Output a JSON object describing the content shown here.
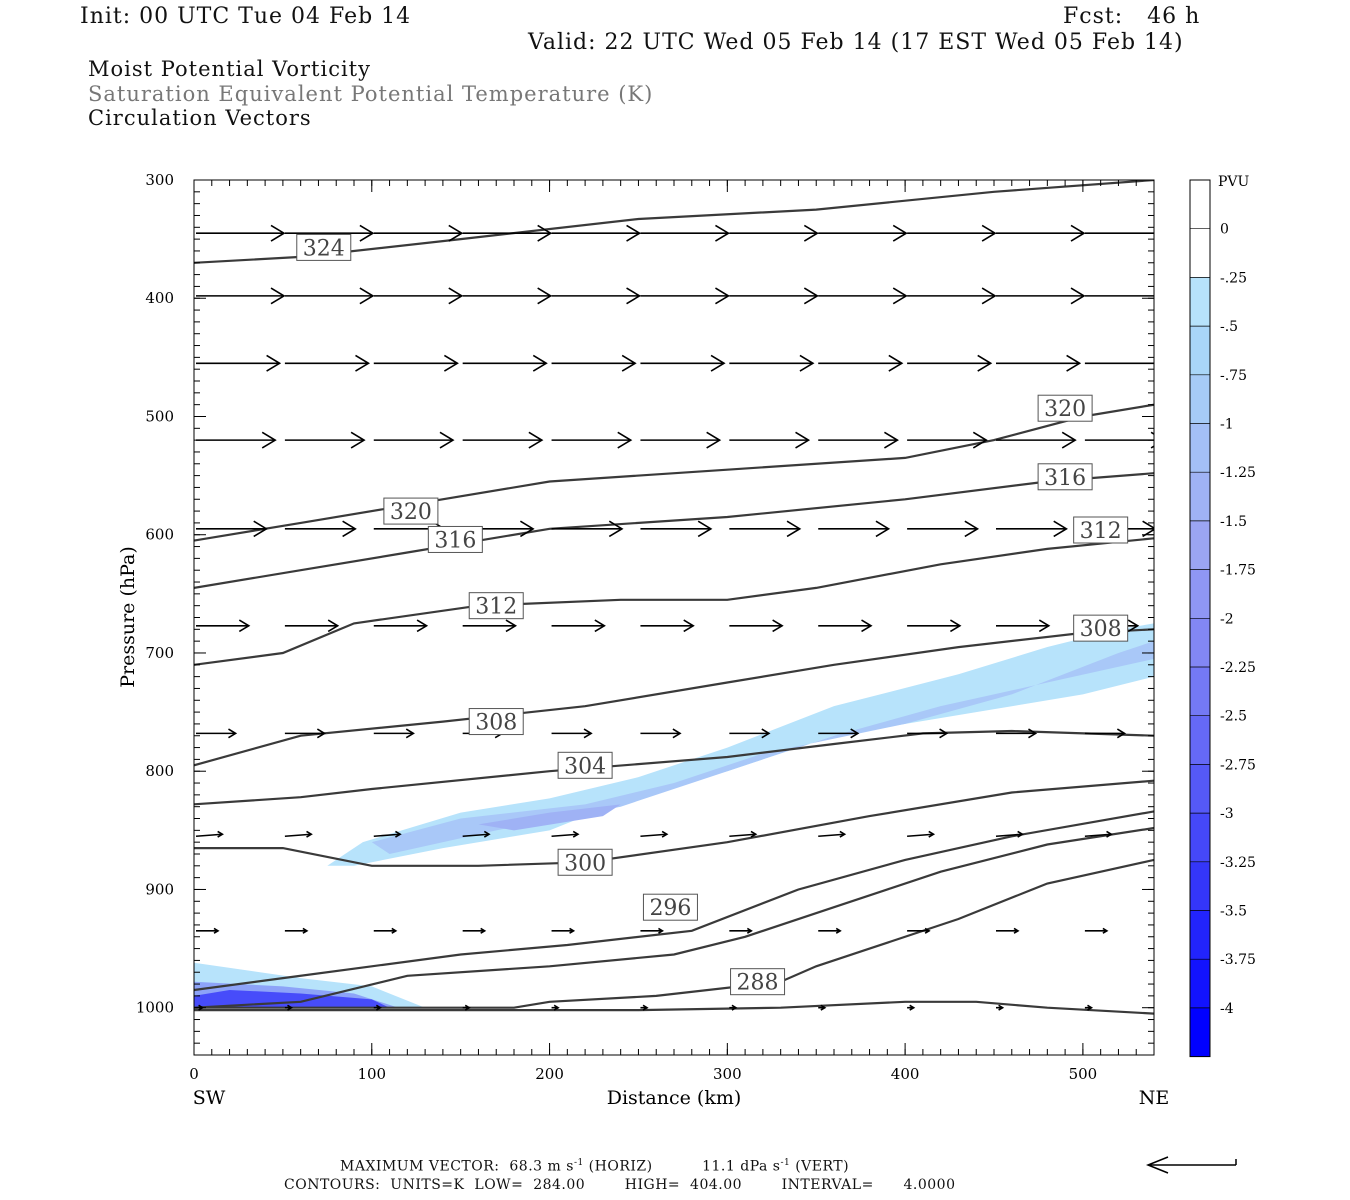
{
  "header": {
    "init": "Init: 00 UTC Tue 04 Feb 14",
    "fcst": "Fcst:   46 h",
    "valid": "Valid: 22 UTC Wed 05 Feb 14 (17 EST Wed 05 Feb 14)",
    "field1": "Moist Potential Vorticity",
    "field2": "Saturation Equivalent Potential Temperature (K)",
    "field3": "Circulation Vectors"
  },
  "footer": {
    "max_vector_label": "MAXIMUM VECTOR:",
    "horiz_value": "68.3 m s",
    "horiz_tag": "(HORIZ)",
    "vert_value": "11.1 dPa s",
    "vert_tag": "(VERT)",
    "exp": "-1",
    "contours": "CONTOURS:  UNITS=K  LOW=  284.00        HIGH=  404.00        INTERVAL=      4.0000"
  },
  "colors": {
    "contour": "#3a3a3a",
    "pv_light": "#b7e3fb",
    "pv_mid": "#a9c8f8",
    "pv_strong": "#0000ff"
  },
  "chart_data": {
    "type": "contour",
    "xlabel": "Distance (km)",
    "ylabel": "Pressure (hPa)",
    "x_left_label": "SW",
    "x_right_label": "NE",
    "xlim": [
      0,
      540
    ],
    "ylim": [
      1040,
      300
    ],
    "xticks": [
      "0",
      "100",
      "200",
      "300",
      "400",
      "500"
    ],
    "yticks": [
      "300",
      "400",
      "500",
      "600",
      "700",
      "800",
      "900",
      "1000"
    ],
    "colorbar": {
      "units": "PVU",
      "labels": [
        "0",
        "-.25",
        "-.5",
        "-.75",
        "-1",
        "-1.25",
        "-1.5",
        "-1.75",
        "-2",
        "-2.25",
        "-2.5",
        "-2.75",
        "-3",
        "-3.25",
        "-3.5",
        "-3.75",
        "-4"
      ],
      "colors": [
        "#ffffff",
        "#ffffff",
        "#b7e3fb",
        "#a9d6f8",
        "#a6cbf7",
        "#a3bff6",
        "#9fb2f5",
        "#9ba5f3",
        "#8f96f4",
        "#8287f4",
        "#7479f5",
        "#6569f6",
        "#5559f7",
        "#4548f8",
        "#3436fa",
        "#2224fc",
        "#1213fd",
        "#0000ff"
      ]
    },
    "contours_K": [
      {
        "level": 324,
        "label": "324",
        "points": [
          [
            0,
            370
          ],
          [
            60,
            365
          ],
          [
            150,
            350
          ],
          [
            250,
            333
          ],
          [
            350,
            325
          ],
          [
            450,
            310
          ],
          [
            540,
            300
          ]
        ]
      },
      {
        "level": 320,
        "label": "320",
        "points": [
          [
            0,
            605
          ],
          [
            60,
            590
          ],
          [
            120,
            575
          ],
          [
            200,
            555
          ],
          [
            300,
            545
          ],
          [
            400,
            535
          ],
          [
            450,
            520
          ],
          [
            500,
            500
          ],
          [
            540,
            490
          ]
        ]
      },
      {
        "level": 316,
        "label": "316",
        "points": [
          [
            0,
            645
          ],
          [
            60,
            630
          ],
          [
            120,
            615
          ],
          [
            200,
            595
          ],
          [
            300,
            585
          ],
          [
            400,
            570
          ],
          [
            480,
            555
          ],
          [
            540,
            548
          ]
        ]
      },
      {
        "level": 312,
        "label": "312",
        "points": [
          [
            0,
            710
          ],
          [
            50,
            700
          ],
          [
            90,
            675
          ],
          [
            160,
            660
          ],
          [
            240,
            655
          ],
          [
            300,
            655
          ],
          [
            350,
            645
          ],
          [
            420,
            625
          ],
          [
            480,
            612
          ],
          [
            540,
            603
          ]
        ]
      },
      {
        "level": 308,
        "label": "308",
        "points": [
          [
            0,
            795
          ],
          [
            60,
            770
          ],
          [
            140,
            758
          ],
          [
            220,
            745
          ],
          [
            300,
            725
          ],
          [
            360,
            710
          ],
          [
            430,
            695
          ],
          [
            500,
            683
          ],
          [
            540,
            680
          ]
        ]
      },
      {
        "level": 304,
        "label": "304",
        "points": [
          [
            0,
            828
          ],
          [
            60,
            822
          ],
          [
            100,
            815
          ],
          [
            200,
            800
          ],
          [
            300,
            788
          ],
          [
            360,
            777
          ],
          [
            410,
            768
          ],
          [
            460,
            766
          ],
          [
            540,
            770
          ]
        ]
      },
      {
        "level": 300,
        "label": "300",
        "points": [
          [
            0,
            865
          ],
          [
            50,
            865
          ],
          [
            100,
            880
          ],
          [
            160,
            880
          ],
          [
            220,
            877
          ],
          [
            300,
            860
          ],
          [
            380,
            838
          ],
          [
            460,
            818
          ],
          [
            540,
            808
          ]
        ]
      },
      {
        "level": 296,
        "label": "296",
        "points": [
          [
            0,
            985
          ],
          [
            50,
            975
          ],
          [
            100,
            965
          ],
          [
            150,
            955
          ],
          [
            210,
            947
          ],
          [
            280,
            935
          ],
          [
            340,
            900
          ],
          [
            400,
            875
          ],
          [
            460,
            855
          ],
          [
            540,
            834
          ]
        ]
      },
      {
        "level": 292,
        "label": "",
        "points": [
          [
            0,
            1000
          ],
          [
            60,
            995
          ],
          [
            120,
            973
          ],
          [
            200,
            965
          ],
          [
            270,
            955
          ],
          [
            310,
            940
          ],
          [
            360,
            915
          ],
          [
            420,
            885
          ],
          [
            480,
            862
          ],
          [
            540,
            848
          ]
        ]
      },
      {
        "level": 288,
        "label": "288",
        "points": [
          [
            0,
            1000
          ],
          [
            180,
            1000
          ],
          [
            200,
            995
          ],
          [
            260,
            990
          ],
          [
            330,
            978
          ],
          [
            350,
            965
          ],
          [
            380,
            950
          ],
          [
            430,
            925
          ],
          [
            480,
            895
          ],
          [
            540,
            875
          ]
        ]
      },
      {
        "level": 284,
        "label": "",
        "points": [
          [
            0,
            1002
          ],
          [
            150,
            1002
          ],
          [
            250,
            1002
          ],
          [
            330,
            1000
          ],
          [
            400,
            995
          ],
          [
            440,
            995
          ],
          [
            480,
            1000
          ],
          [
            540,
            1005
          ]
        ]
      }
    ],
    "pv_regions": [
      {
        "level": -0.5,
        "points": [
          [
            75,
            880
          ],
          [
            95,
            860
          ],
          [
            150,
            835
          ],
          [
            200,
            823
          ],
          [
            250,
            805
          ],
          [
            300,
            780
          ],
          [
            360,
            745
          ],
          [
            430,
            718
          ],
          [
            480,
            695
          ],
          [
            520,
            680
          ],
          [
            540,
            675
          ],
          [
            540,
            720
          ],
          [
            500,
            735
          ],
          [
            440,
            750
          ],
          [
            360,
            770
          ],
          [
            300,
            800
          ],
          [
            250,
            820
          ],
          [
            200,
            850
          ],
          [
            140,
            865
          ],
          [
            90,
            880
          ]
        ]
      },
      {
        "level": -0.75,
        "points": [
          [
            100,
            860
          ],
          [
            150,
            840
          ],
          [
            220,
            828
          ],
          [
            270,
            810
          ],
          [
            320,
            785
          ],
          [
            400,
            760
          ],
          [
            460,
            735
          ],
          [
            520,
            700
          ],
          [
            540,
            690
          ],
          [
            540,
            705
          ],
          [
            480,
            725
          ],
          [
            420,
            745
          ],
          [
            360,
            770
          ],
          [
            300,
            800
          ],
          [
            240,
            830
          ],
          [
            170,
            850
          ],
          [
            110,
            870
          ]
        ]
      },
      {
        "level": -1.0,
        "points": [
          [
            160,
            845
          ],
          [
            200,
            835
          ],
          [
            240,
            828
          ],
          [
            230,
            838
          ],
          [
            180,
            850
          ]
        ]
      },
      {
        "level": -0.5,
        "points": [
          [
            0,
            962
          ],
          [
            60,
            975
          ],
          [
            100,
            982
          ],
          [
            130,
            1000
          ],
          [
            0,
            1000
          ]
        ]
      }
    ],
    "vectors": [
      {
        "p": 345,
        "xs": [
          0,
          50,
          100,
          150,
          200,
          250,
          300,
          350,
          400,
          450,
          500
        ],
        "u": 40,
        "w": 0
      },
      {
        "p": 398,
        "xs": [
          0,
          50,
          100,
          150,
          200,
          250,
          300,
          350,
          400,
          450,
          500
        ],
        "u": 40,
        "w": 0
      },
      {
        "p": 455,
        "xs": [
          0,
          50,
          100,
          150,
          200,
          250,
          300,
          350,
          400,
          450,
          500
        ],
        "u": 38,
        "w": 0
      },
      {
        "p": 520,
        "xs": [
          0,
          50,
          100,
          150,
          200,
          250,
          300,
          350,
          400,
          450,
          500
        ],
        "u": 36,
        "w": 0
      },
      {
        "p": 595,
        "xs": [
          0,
          50,
          100,
          150,
          200,
          250,
          300,
          350,
          400,
          450,
          500
        ],
        "u": 32,
        "w": 0
      },
      {
        "p": 677,
        "xs": [
          0,
          50,
          100,
          150,
          200,
          250,
          300,
          350,
          400,
          450,
          500
        ],
        "u": 24,
        "w": 0
      },
      {
        "p": 768,
        "xs": [
          0,
          50,
          100,
          150,
          200,
          250,
          300,
          350,
          400,
          450,
          500
        ],
        "u": 18,
        "w": 0
      },
      {
        "p": 855,
        "xs": [
          0,
          50,
          100,
          150,
          200,
          250,
          300,
          350,
          400,
          450,
          500
        ],
        "u": 12,
        "w": 2
      },
      {
        "p": 935,
        "xs": [
          0,
          50,
          100,
          150,
          200,
          250,
          300,
          350,
          400,
          450,
          500
        ],
        "u": 10,
        "w": 0
      },
      {
        "p": 1000,
        "xs": [
          0,
          50,
          100,
          150,
          200,
          250,
          300,
          350,
          400,
          450,
          500
        ],
        "u": 3,
        "w": 0
      }
    ]
  }
}
